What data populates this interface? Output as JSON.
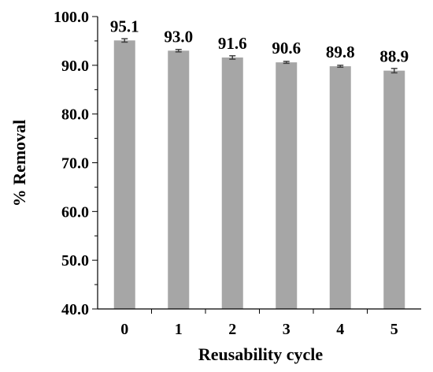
{
  "chart_data": {
    "type": "bar",
    "title": "",
    "xlabel": "Reusability cycle",
    "ylabel": "% Removal",
    "categories": [
      "0",
      "1",
      "2",
      "3",
      "4",
      "5"
    ],
    "values": [
      95.1,
      93.0,
      91.6,
      90.6,
      89.8,
      88.9
    ],
    "data_labels": [
      "95.1",
      "93.0",
      "91.6",
      "90.6",
      "89.8",
      "88.9"
    ],
    "error": [
      0.35,
      0.25,
      0.35,
      0.2,
      0.2,
      0.45
    ],
    "ylim": [
      40,
      100
    ],
    "yticks": [
      "40.0",
      "50.0",
      "60.0",
      "70.0",
      "80.0",
      "90.0",
      "100.0"
    ],
    "ytick_values": [
      40,
      50,
      60,
      70,
      80,
      90,
      100
    ],
    "grid": false,
    "legend": "none",
    "bar_color": "#a6a6a6",
    "errorbar_color": "#404040"
  }
}
